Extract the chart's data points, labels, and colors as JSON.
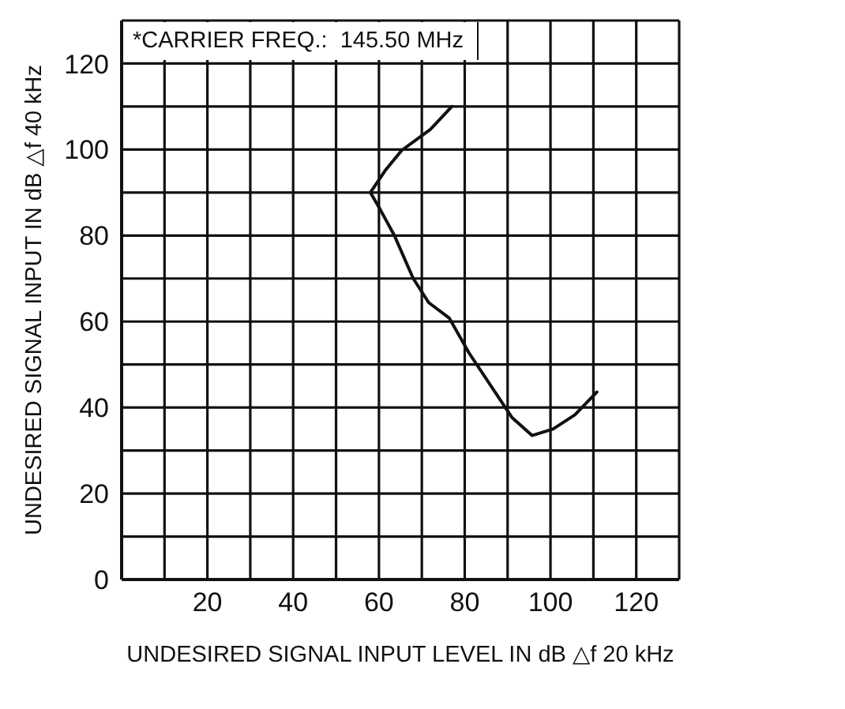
{
  "chart_data": {
    "type": "line",
    "xlabel": "UNDESIRED SIGNAL INPUT LEVEL IN dB △f 20 kHz",
    "ylabel": "UNDESIRED SIGNAL INPUT IN dB △f 40 kHz",
    "annotations": [
      "*CARRIER FREQ.:  145.50 MHz"
    ],
    "x": [
      77,
      72,
      65.3,
      61.6,
      58,
      60,
      63.6,
      68,
      71.6,
      76.4,
      81,
      91,
      95.7,
      100.6,
      105.7,
      110.8
    ],
    "series": [
      {
        "color": "#111111",
        "values": [
          110,
          104.7,
          99.8,
          95.3,
          90,
          86.6,
          80,
          70,
          64.4,
          60.8,
          52.7,
          37.7,
          33.5,
          35,
          38.3,
          43.6
        ]
      }
    ],
    "xlim": [
      0,
      130
    ],
    "ylim": [
      0,
      130
    ],
    "xticks": [
      {
        "value": 10,
        "label": null
      },
      20,
      {
        "value": 30,
        "label": null
      },
      40,
      {
        "value": 50,
        "label": null
      },
      60,
      {
        "value": 70,
        "label": null
      },
      80,
      {
        "value": 90,
        "label": null
      },
      100,
      {
        "value": 110,
        "label": null
      },
      120
    ],
    "yticks": [
      0,
      {
        "value": 10,
        "label": null
      },
      20,
      {
        "value": 30,
        "label": null
      },
      40,
      {
        "value": 50,
        "label": null
      },
      60,
      {
        "value": 70,
        "label": null
      },
      80,
      {
        "value": 90,
        "label": null
      },
      100,
      {
        "value": 110,
        "label": null
      },
      120
    ],
    "grid": true,
    "marker": "none",
    "line_style": "solid"
  }
}
